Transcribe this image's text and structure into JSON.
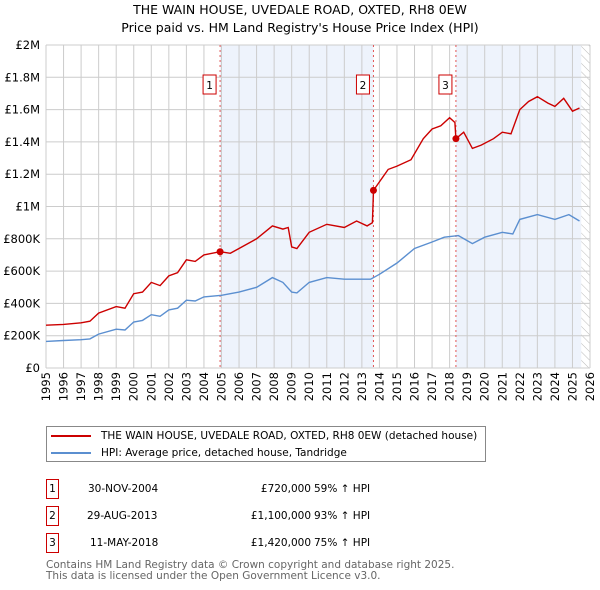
{
  "chart_data": {
    "type": "line",
    "title": "THE WAIN HOUSE, UVEDALE ROAD, OXTED, RH8 0EW",
    "subtitle": "Price paid vs. HM Land Registry's House Price Index (HPI)",
    "xlim": [
      1995,
      2026
    ],
    "ylim": [
      0,
      2000000
    ],
    "grid": true,
    "x_ticks": [
      "1995",
      "1996",
      "1997",
      "1998",
      "1999",
      "2000",
      "2001",
      "2002",
      "2003",
      "2004",
      "2005",
      "2006",
      "2007",
      "2008",
      "2009",
      "2010",
      "2011",
      "2012",
      "2013",
      "2014",
      "2015",
      "2016",
      "2017",
      "2018",
      "2019",
      "2020",
      "2021",
      "2022",
      "2023",
      "2024",
      "2025",
      "2026"
    ],
    "y_ticks": [
      {
        "v": 0,
        "label": "£0"
      },
      {
        "v": 200000,
        "label": "£200K"
      },
      {
        "v": 400000,
        "label": "£400K"
      },
      {
        "v": 600000,
        "label": "£600K"
      },
      {
        "v": 800000,
        "label": "£800K"
      },
      {
        "v": 1000000,
        "label": "£1M"
      },
      {
        "v": 1200000,
        "label": "£1.2M"
      },
      {
        "v": 1400000,
        "label": "£1.4M"
      },
      {
        "v": 1600000,
        "label": "£1.6M"
      },
      {
        "v": 1800000,
        "label": "£1.8M"
      },
      {
        "v": 2000000,
        "label": "£2M"
      }
    ],
    "series": [
      {
        "name": "THE WAIN HOUSE, UVEDALE ROAD, OXTED, RH8 0EW (detached house)",
        "color": "#cc0000",
        "x": [
          1995,
          1996,
          1997,
          1997.5,
          1998,
          1999,
          1999.5,
          2000,
          2000.5,
          2001,
          2001.5,
          2002,
          2002.5,
          2003,
          2003.5,
          2004,
          2004.92,
          2005.5,
          2006,
          2007,
          2007.9,
          2008.5,
          2008.8,
          2009,
          2009.3,
          2010,
          2011,
          2012,
          2012.7,
          2013.3,
          2013.6,
          2013.66,
          2014.5,
          2015,
          2015.8,
          2016.5,
          2017,
          2017.5,
          2018,
          2018.3,
          2018.36,
          2018.8,
          2019.3,
          2019.8,
          2020.5,
          2021,
          2021.5,
          2022,
          2022.5,
          2023,
          2023.6,
          2024,
          2024.5,
          2025,
          2025.4
        ],
        "values": [
          265000,
          270000,
          280000,
          290000,
          340000,
          380000,
          370000,
          460000,
          470000,
          530000,
          510000,
          570000,
          590000,
          670000,
          660000,
          700000,
          720000,
          710000,
          740000,
          800000,
          880000,
          860000,
          870000,
          750000,
          740000,
          840000,
          890000,
          870000,
          910000,
          880000,
          900000,
          1100000,
          1230000,
          1250000,
          1290000,
          1420000,
          1480000,
          1500000,
          1550000,
          1520000,
          1420000,
          1460000,
          1360000,
          1380000,
          1420000,
          1460000,
          1450000,
          1600000,
          1650000,
          1680000,
          1640000,
          1620000,
          1670000,
          1590000,
          1610000
        ]
      },
      {
        "name": "HPI: Average price, detached house, Tandridge",
        "color": "#5b8fd0",
        "x": [
          1995,
          1996,
          1997,
          1997.5,
          1998,
          1999,
          1999.5,
          2000,
          2000.5,
          2001,
          2001.5,
          2002,
          2002.5,
          2003,
          2003.5,
          2004,
          2005,
          2006,
          2007,
          2007.9,
          2008.5,
          2009,
          2009.3,
          2010,
          2011,
          2012,
          2013,
          2013.5,
          2014,
          2015,
          2016,
          2017,
          2017.7,
          2018.5,
          2019.3,
          2020,
          2021,
          2021.6,
          2022,
          2023,
          2024,
          2024.8,
          2025.4
        ],
        "values": [
          165000,
          170000,
          175000,
          180000,
          210000,
          240000,
          235000,
          285000,
          295000,
          330000,
          320000,
          360000,
          370000,
          420000,
          415000,
          440000,
          450000,
          470000,
          500000,
          560000,
          530000,
          470000,
          465000,
          530000,
          560000,
          550000,
          550000,
          550000,
          580000,
          650000,
          740000,
          780000,
          810000,
          820000,
          770000,
          810000,
          840000,
          830000,
          920000,
          950000,
          920000,
          950000,
          910000
        ]
      }
    ],
    "annotations": [
      {
        "id": "1",
        "x": 2004.92,
        "value": 720000
      },
      {
        "id": "2",
        "x": 2013.66,
        "value": 1100000
      },
      {
        "id": "3",
        "x": 2018.36,
        "value": 1420000
      }
    ],
    "shaded_ranges": [
      [
        2004.92,
        2013.66
      ],
      [
        2018.36,
        2025.5
      ]
    ],
    "hatched_range": [
      2025.5,
      2026
    ]
  },
  "legend": {
    "property": "THE WAIN HOUSE, UVEDALE ROAD, OXTED, RH8 0EW (detached house)",
    "hpi": "HPI: Average price, detached house, Tandridge"
  },
  "sales": [
    {
      "id": "1",
      "date": "30-NOV-2004",
      "price": "£720,000",
      "hpi": "59% ↑ HPI"
    },
    {
      "id": "2",
      "date": "29-AUG-2013",
      "price": "£1,100,000",
      "hpi": "93% ↑ HPI"
    },
    {
      "id": "3",
      "date": "11-MAY-2018",
      "price": "£1,420,000",
      "hpi": "75% ↑ HPI"
    }
  ],
  "footer": {
    "line1": "Contains HM Land Registry data © Crown copyright and database right 2025.",
    "line2": "This data is licensed under the Open Government Licence v3.0."
  }
}
